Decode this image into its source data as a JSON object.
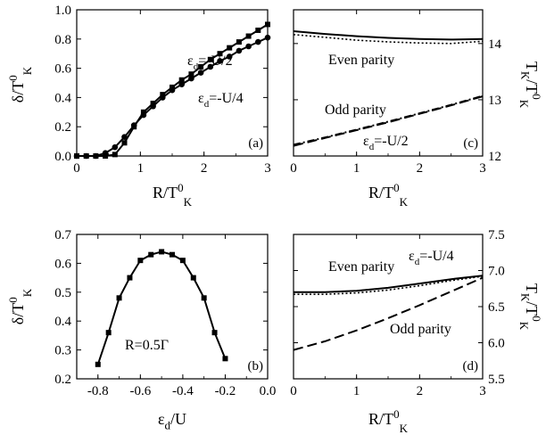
{
  "chart_data": [
    {
      "panel": "(a)",
      "type": "line",
      "x_label": {
        "main": "R/T",
        "sup": "0",
        "sub": "K"
      },
      "y_label": {
        "main": "δ/T",
        "sup": "0",
        "sub": "K"
      },
      "xlim": [
        0,
        3
      ],
      "ylim": [
        0,
        1.0
      ],
      "xticks": [
        "0",
        "1",
        "2",
        "3"
      ],
      "yticks": [
        "0.0",
        "0.2",
        "0.4",
        "0.6",
        "0.8",
        "1.0"
      ],
      "series": [
        {
          "name": "εd=-U/2",
          "marker": "square",
          "x": [
            0,
            0.15,
            0.3,
            0.45,
            0.6,
            0.75,
            0.9,
            1.05,
            1.2,
            1.35,
            1.5,
            1.65,
            1.8,
            1.95,
            2.1,
            2.25,
            2.4,
            2.55,
            2.7,
            2.85,
            3.0
          ],
          "y": [
            0,
            0,
            0,
            0,
            0.01,
            0.09,
            0.2,
            0.3,
            0.36,
            0.42,
            0.47,
            0.52,
            0.56,
            0.61,
            0.66,
            0.7,
            0.74,
            0.78,
            0.82,
            0.86,
            0.9
          ]
        },
        {
          "name": "εd=-U/4",
          "marker": "circle",
          "x": [
            0,
            0.15,
            0.3,
            0.45,
            0.6,
            0.75,
            0.9,
            1.05,
            1.2,
            1.35,
            1.5,
            1.65,
            1.8,
            1.95,
            2.1,
            2.25,
            2.4,
            2.55,
            2.7,
            2.85,
            3.0
          ],
          "y": [
            0,
            0,
            0,
            0.02,
            0.06,
            0.13,
            0.21,
            0.28,
            0.34,
            0.4,
            0.45,
            0.49,
            0.53,
            0.57,
            0.61,
            0.65,
            0.68,
            0.72,
            0.75,
            0.78,
            0.81
          ]
        }
      ],
      "annotations": [
        {
          "main": "ε",
          "sub": "d",
          "rest": "=-U/2"
        },
        {
          "main": "ε",
          "sub": "d",
          "rest": "=-U/4"
        }
      ]
    },
    {
      "panel": "(b)",
      "type": "line",
      "x_label": {
        "main": "ε",
        "sub": "d",
        "rest": "/U"
      },
      "y_label": {
        "main": "δ/T",
        "sup": "0",
        "sub": "K"
      },
      "xlim": [
        -0.9,
        0.0
      ],
      "ylim": [
        0.2,
        0.7
      ],
      "xticks": [
        "-0.8",
        "-0.6",
        "-0.4",
        "-0.2",
        "0.0"
      ],
      "yticks": [
        "0.2",
        "0.3",
        "0.4",
        "0.5",
        "0.6",
        "0.7"
      ],
      "series": [
        {
          "name": "",
          "marker": "square",
          "x": [
            -0.8,
            -0.75,
            -0.7,
            -0.65,
            -0.6,
            -0.55,
            -0.5,
            -0.45,
            -0.4,
            -0.35,
            -0.3,
            -0.25,
            -0.2
          ],
          "y": [
            0.25,
            0.36,
            0.48,
            0.55,
            0.61,
            0.63,
            0.64,
            0.63,
            0.61,
            0.55,
            0.48,
            0.36,
            0.27
          ]
        }
      ],
      "annotations": [
        {
          "text": "R=0.5Γ"
        }
      ]
    },
    {
      "panel": "(c)",
      "type": "line",
      "x_label": {
        "main": "R/T",
        "sup": "0",
        "sub": "K"
      },
      "y_label": {
        "main": "T",
        "sub": "K",
        "rest": "/T",
        "sup": "0",
        "sub2": "K"
      },
      "xlim": [
        0,
        3
      ],
      "ylim": [
        12,
        14.6
      ],
      "xticks": [
        "0",
        "1",
        "2",
        "3"
      ],
      "yticks": [
        "12",
        "13",
        "14"
      ],
      "series": [
        {
          "name": "Even parity (solid)",
          "style": "solid",
          "x": [
            0,
            0.5,
            1,
            1.5,
            2,
            2.5,
            3
          ],
          "y": [
            14.22,
            14.17,
            14.13,
            14.1,
            14.08,
            14.07,
            14.08
          ]
        },
        {
          "name": "Even parity (dotted)",
          "style": "dotted",
          "x": [
            0,
            0.5,
            1,
            1.5,
            2,
            2.5,
            3
          ],
          "y": [
            14.16,
            14.11,
            14.06,
            14.03,
            14.01,
            14.0,
            14.04
          ]
        },
        {
          "name": "Odd parity (dashed)",
          "style": "dashed",
          "x": [
            0,
            0.5,
            1,
            1.5,
            2,
            2.5,
            3
          ],
          "y": [
            12.18,
            12.32,
            12.46,
            12.6,
            12.75,
            12.9,
            13.06
          ]
        },
        {
          "name": "Odd parity (dash-dot)",
          "style": "dashdot",
          "x": [
            0,
            0.5,
            1,
            1.5,
            2,
            2.5,
            3
          ],
          "y": [
            12.2,
            12.33,
            12.47,
            12.61,
            12.76,
            12.91,
            13.07
          ]
        }
      ],
      "annotations": [
        {
          "text": "Even parity"
        },
        {
          "text": "Odd parity"
        },
        {
          "main": "ε",
          "sub": "d",
          "rest": "=-U/2"
        }
      ]
    },
    {
      "panel": "(d)",
      "type": "line",
      "x_label": {
        "main": "R/T",
        "sup": "0",
        "sub": "K"
      },
      "y_label": {
        "main": "T",
        "sub": "K",
        "rest": "/T",
        "sup": "0",
        "sub2": "K"
      },
      "xlim": [
        0,
        3
      ],
      "ylim": [
        5.5,
        7.5
      ],
      "xticks": [
        "0",
        "1",
        "2",
        "3"
      ],
      "yticks": [
        "5.5",
        "6.0",
        "6.5",
        "7.0",
        "7.5"
      ],
      "series": [
        {
          "name": "Even parity (solid)",
          "style": "solid",
          "x": [
            0,
            0.5,
            1,
            1.5,
            2,
            2.5,
            3
          ],
          "y": [
            6.7,
            6.7,
            6.72,
            6.76,
            6.82,
            6.88,
            6.93
          ]
        },
        {
          "name": "Even parity (dotted)",
          "style": "dotted",
          "x": [
            0,
            0.5,
            1,
            1.5,
            2,
            2.5,
            3
          ],
          "y": [
            6.67,
            6.67,
            6.69,
            6.73,
            6.79,
            6.86,
            6.92
          ]
        },
        {
          "name": "Odd parity (dashed)",
          "style": "dashed",
          "x": [
            0,
            0.5,
            1,
            1.5,
            2,
            2.5,
            3
          ],
          "y": [
            5.9,
            6.02,
            6.17,
            6.34,
            6.52,
            6.71,
            6.9
          ]
        }
      ],
      "annotations": [
        {
          "main": "ε",
          "sub": "d",
          "rest": "=-U/4"
        },
        {
          "text": "Even parity"
        },
        {
          "text": "Odd parity"
        }
      ]
    }
  ]
}
